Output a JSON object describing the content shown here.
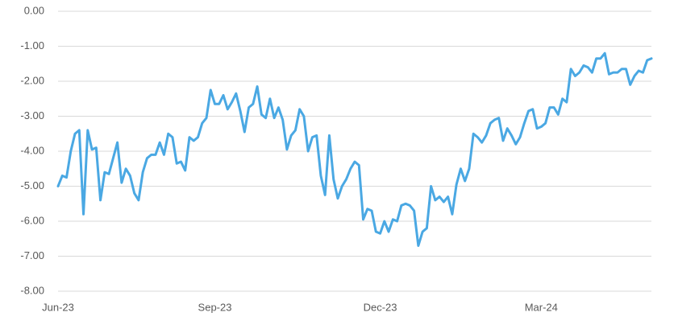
{
  "chart_data": {
    "type": "line",
    "categories": [
      "Jun-23",
      null,
      null,
      null,
      null,
      null,
      null,
      null,
      null,
      null,
      null,
      null,
      null,
      null,
      null,
      null,
      null,
      null,
      null,
      null,
      null,
      null,
      null,
      null,
      null,
      null,
      null,
      null,
      null,
      null,
      null,
      null,
      null,
      null,
      null,
      null,
      null,
      "Sep-23",
      null,
      null,
      null,
      null,
      null,
      null,
      null,
      null,
      null,
      null,
      null,
      null,
      null,
      null,
      null,
      null,
      null,
      null,
      null,
      null,
      null,
      null,
      null,
      null,
      null,
      null,
      null,
      null,
      null,
      null,
      null,
      null,
      null,
      null,
      null,
      null,
      null,
      null,
      "Dec-23",
      null,
      null,
      null,
      null,
      null,
      null,
      null,
      null,
      null,
      null,
      null,
      null,
      null,
      null,
      null,
      null,
      null,
      null,
      null,
      null,
      null,
      null,
      null,
      null,
      null,
      null,
      null,
      null,
      null,
      null,
      null,
      null,
      null,
      null,
      null,
      null,
      null,
      "Mar-24",
      null,
      null,
      null,
      null,
      null,
      null,
      null,
      null,
      null,
      null,
      null,
      null,
      null,
      null,
      null,
      null,
      null,
      null,
      null,
      null,
      null,
      null,
      null,
      null,
      null,
      null
    ],
    "values": [
      -5.0,
      -4.7,
      -4.75,
      -4.0,
      -3.5,
      -3.4,
      -5.8,
      -3.4,
      -3.95,
      -3.9,
      -5.4,
      -4.6,
      -4.65,
      -4.2,
      -3.75,
      -4.9,
      -4.5,
      -4.7,
      -5.2,
      -5.4,
      -4.6,
      -4.2,
      -4.1,
      -4.1,
      -3.75,
      -4.1,
      -3.5,
      -3.6,
      -4.35,
      -4.3,
      -4.55,
      -3.6,
      -3.7,
      -3.6,
      -3.2,
      -3.05,
      -2.25,
      -2.65,
      -2.65,
      -2.4,
      -2.8,
      -2.6,
      -2.35,
      -2.85,
      -3.45,
      -2.75,
      -2.65,
      -2.15,
      -2.95,
      -3.05,
      -2.5,
      -3.05,
      -2.75,
      -3.1,
      -3.95,
      -3.55,
      -3.4,
      -2.8,
      -3.0,
      -4.0,
      -3.6,
      -3.55,
      -4.7,
      -5.25,
      -3.55,
      -4.8,
      -5.35,
      -5.0,
      -4.8,
      -4.5,
      -4.3,
      -4.4,
      -5.95,
      -5.65,
      -5.7,
      -6.3,
      -6.35,
      -6.0,
      -6.3,
      -5.95,
      -6.0,
      -5.55,
      -5.5,
      -5.55,
      -5.7,
      -6.7,
      -6.3,
      -6.2,
      -5.0,
      -5.4,
      -5.3,
      -5.45,
      -5.3,
      -5.8,
      -4.95,
      -4.5,
      -4.85,
      -4.5,
      -3.5,
      -3.6,
      -3.75,
      -3.55,
      -3.2,
      -3.1,
      -3.05,
      -3.7,
      -3.35,
      -3.55,
      -3.8,
      -3.6,
      -3.2,
      -2.85,
      -2.8,
      -3.35,
      -3.3,
      -3.2,
      -2.75,
      -2.75,
      -2.95,
      -2.5,
      -2.6,
      -1.65,
      -1.85,
      -1.75,
      -1.55,
      -1.6,
      -1.75,
      -1.35,
      -1.35,
      -1.2,
      -1.8,
      -1.75,
      -1.75,
      -1.65,
      -1.65,
      -2.1,
      -1.85,
      -1.7,
      -1.75,
      -1.4,
      -1.35
    ],
    "color": "#4aa8e3",
    "ylim": [
      -8,
      0
    ],
    "yticks": [
      {
        "value": 0,
        "label": "0.00"
      },
      {
        "value": -1,
        "label": "-1.00"
      },
      {
        "value": -2,
        "label": "-2.00"
      },
      {
        "value": -3,
        "label": "-3.00"
      },
      {
        "value": -4,
        "label": "-4.00"
      },
      {
        "value": -5,
        "label": "-5.00"
      },
      {
        "value": -6,
        "label": "-6.00"
      },
      {
        "value": -7,
        "label": "-7.00"
      },
      {
        "value": -8,
        "label": "-8.00"
      }
    ],
    "grid": true
  }
}
